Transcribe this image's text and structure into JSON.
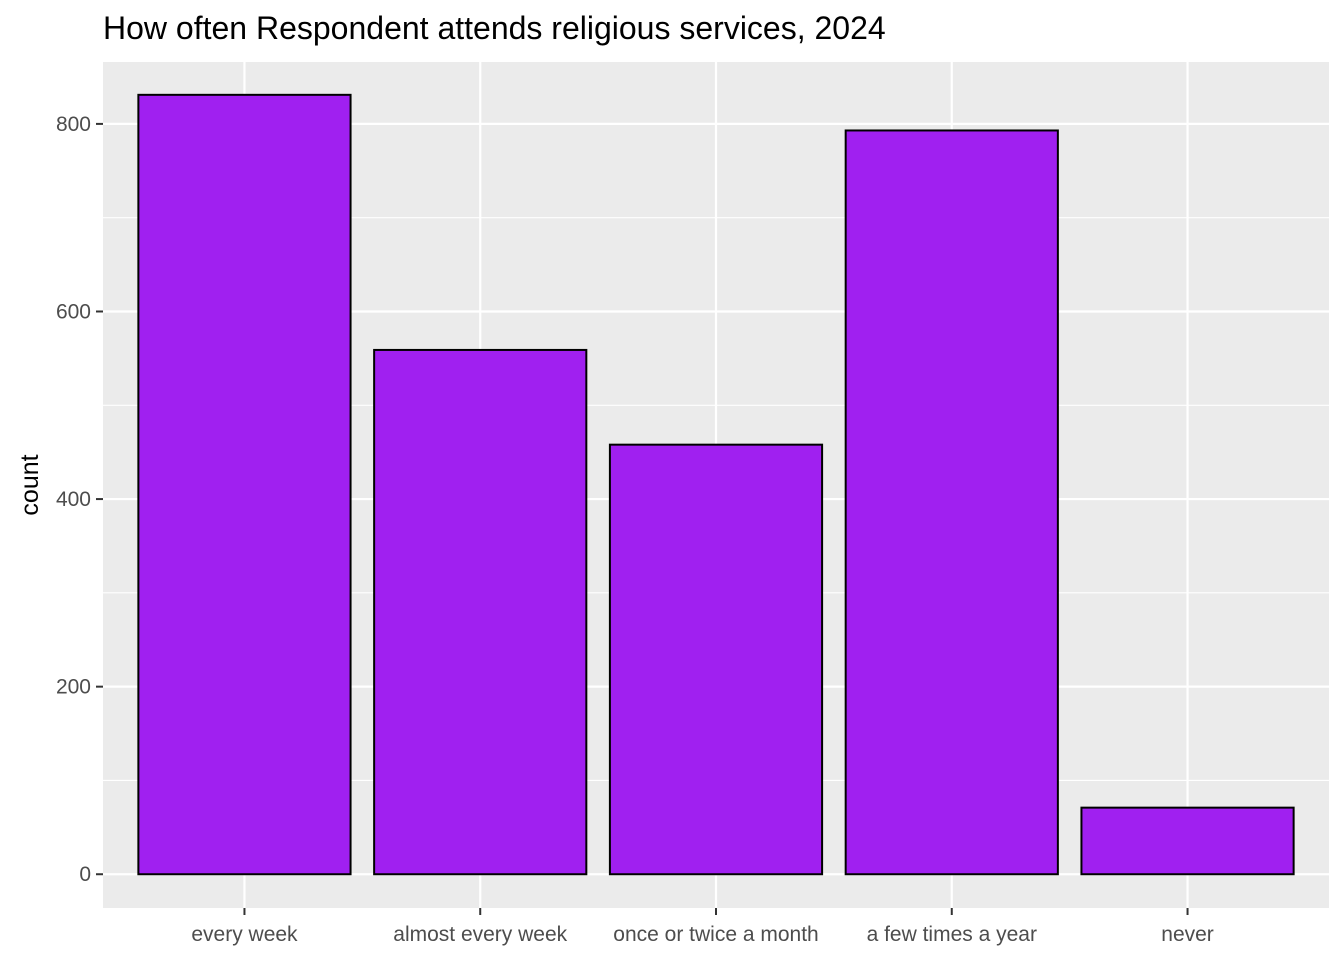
{
  "chart_data": {
    "type": "bar",
    "title": "How often Respondent attends religious services, 2024",
    "xlabel": "",
    "ylabel": "count",
    "categories": [
      "every week",
      "almost every week",
      "once or twice a month",
      "a few times a year",
      "never"
    ],
    "values": [
      831,
      559,
      458,
      793,
      71
    ],
    "ylim": [
      -36,
      866
    ],
    "yticks": [
      0,
      200,
      400,
      600,
      800
    ],
    "grid": true,
    "legend": "none",
    "colors": {
      "bar_fill": "#A020F0",
      "bar_stroke": "#000000",
      "panel_background": "#EBEBEB",
      "grid_major": "#FFFFFF",
      "tick_text": "#4D4D4D"
    }
  }
}
